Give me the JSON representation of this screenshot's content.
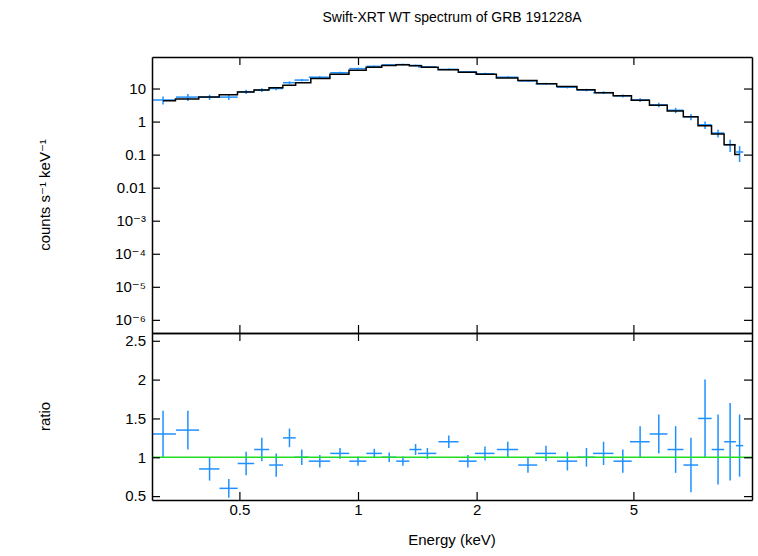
{
  "chart_data": [
    {
      "type": "scatter",
      "title": "Swift-XRT WT spectrum of GRB 191228A",
      "y_label": "counts s⁻¹ keV⁻¹",
      "log": true,
      "tick_labels": "y",
      "xlim": [
        0.3,
        10
      ],
      "ylim": [
        4e-07,
        90
      ],
      "xticks": [
        0.5,
        1,
        2,
        5
      ],
      "yticks": [
        {
          "value": 1e-06,
          "label": "10⁻⁶"
        },
        {
          "value": 1e-05,
          "label": "10⁻⁵"
        },
        {
          "value": 0.0001,
          "label": "10⁻⁴"
        },
        {
          "value": 0.001,
          "label": "10⁻³"
        },
        0.01,
        0.1,
        1,
        10
      ],
      "series": [
        {
          "type": "scatter",
          "color": "#1e90ff",
          "marker": "cross",
          "x": [
            0.32,
            0.37,
            0.42,
            0.47,
            0.52,
            0.57,
            0.62,
            0.67,
            0.72,
            0.8,
            0.9,
            1.0,
            1.1,
            1.2,
            1.3,
            1.4,
            1.5,
            1.7,
            1.9,
            2.1,
            2.4,
            2.7,
            3.0,
            3.4,
            3.8,
            4.2,
            4.7,
            5.2,
            5.8,
            6.4,
            7.0,
            7.6,
            8.2,
            8.8,
            9.3
          ],
          "x_errors": [
            0.025,
            0.025,
            0.025,
            0.025,
            0.025,
            0.025,
            0.025,
            0.025,
            0.03,
            0.05,
            0.05,
            0.05,
            0.05,
            0.05,
            0.05,
            0.05,
            0.08,
            0.1,
            0.1,
            0.12,
            0.15,
            0.15,
            0.18,
            0.2,
            0.2,
            0.25,
            0.25,
            0.3,
            0.3,
            0.3,
            0.3,
            0.3,
            0.3,
            0.3,
            0.2
          ],
          "values": [
            4.5,
            5.5,
            5.5,
            5.5,
            8,
            9,
            10,
            15,
            18,
            22,
            30,
            40,
            47,
            52,
            53,
            50,
            45,
            38,
            32,
            28,
            22,
            17,
            14,
            11,
            9,
            7.5,
            6,
            4.5,
            3.2,
            2.2,
            1.4,
            0.8,
            0.45,
            0.2,
            0.12
          ],
          "errors": [
            1.2,
            1.3,
            1.0,
            1.0,
            1.2,
            1.2,
            1.2,
            1.5,
            1.5,
            1.8,
            2,
            2.5,
            2.5,
            3,
            3,
            3,
            2.5,
            2.2,
            2,
            1.8,
            1.5,
            1.2,
            1,
            0.9,
            0.8,
            0.7,
            0.6,
            0.6,
            0.5,
            0.4,
            0.3,
            0.2,
            0.12,
            0.08,
            0.06
          ]
        },
        {
          "type": "line",
          "color": "#000000",
          "line_style": "steps",
          "x": [
            0.32,
            0.37,
            0.42,
            0.47,
            0.52,
            0.57,
            0.62,
            0.67,
            0.72,
            0.8,
            0.9,
            1.0,
            1.1,
            1.2,
            1.3,
            1.4,
            1.5,
            1.7,
            1.9,
            2.1,
            2.4,
            2.7,
            3.0,
            3.4,
            3.8,
            4.2,
            4.7,
            5.2,
            5.8,
            6.4,
            7.0,
            7.6,
            8.2,
            8.8,
            9.3
          ],
          "values": [
            4.3,
            4.8,
            5.5,
            6.5,
            7.8,
            9,
            10.5,
            12.5,
            15,
            20,
            27,
            36,
            44,
            50,
            52,
            49,
            44,
            37,
            31,
            27,
            21,
            17.5,
            14,
            11.5,
            9.2,
            7.5,
            6.0,
            4.4,
            3.1,
            2.1,
            1.4,
            0.75,
            0.42,
            0.2,
            0.1
          ]
        }
      ]
    },
    {
      "type": "scatter",
      "x_label": "Energy (keV)",
      "y_label": "ratio",
      "log": "x",
      "xlim": [
        0.3,
        10
      ],
      "ylim": [
        0.45,
        2.6
      ],
      "xticks": [
        0.5,
        1,
        2,
        5
      ],
      "yticks": [
        0.5,
        1,
        1.5,
        2,
        2.5
      ],
      "series": [
        {
          "type": "scatter",
          "color": "#1e90ff",
          "marker": "cross",
          "x": [
            0.32,
            0.37,
            0.42,
            0.47,
            0.52,
            0.57,
            0.62,
            0.67,
            0.72,
            0.8,
            0.9,
            1.0,
            1.1,
            1.2,
            1.3,
            1.4,
            1.5,
            1.7,
            1.9,
            2.1,
            2.4,
            2.7,
            3.0,
            3.4,
            3.8,
            4.2,
            4.7,
            5.2,
            5.8,
            6.4,
            7.0,
            7.6,
            8.2,
            8.8,
            9.3
          ],
          "x_errors": [
            0.025,
            0.025,
            0.025,
            0.025,
            0.025,
            0.025,
            0.025,
            0.025,
            0.03,
            0.05,
            0.05,
            0.05,
            0.05,
            0.05,
            0.05,
            0.05,
            0.08,
            0.1,
            0.1,
            0.12,
            0.15,
            0.15,
            0.18,
            0.2,
            0.2,
            0.25,
            0.25,
            0.3,
            0.3,
            0.3,
            0.3,
            0.3,
            0.3,
            0.3,
            0.2
          ],
          "values": [
            1.3,
            1.35,
            0.85,
            0.6,
            0.92,
            1.1,
            0.9,
            1.25,
            1.0,
            0.95,
            1.05,
            0.95,
            1.05,
            1.0,
            0.95,
            1.1,
            1.05,
            1.2,
            0.95,
            1.05,
            1.1,
            0.9,
            1.05,
            0.95,
            1.0,
            1.05,
            0.95,
            1.2,
            1.3,
            1.1,
            0.9,
            1.5,
            1.1,
            1.2,
            1.15
          ],
          "errors": [
            0.3,
            0.25,
            0.15,
            0.12,
            0.15,
            0.15,
            0.15,
            0.12,
            0.1,
            0.08,
            0.07,
            0.06,
            0.06,
            0.06,
            0.06,
            0.07,
            0.07,
            0.08,
            0.08,
            0.09,
            0.1,
            0.1,
            0.1,
            0.12,
            0.12,
            0.15,
            0.15,
            0.2,
            0.25,
            0.3,
            0.35,
            0.5,
            0.45,
            0.5,
            0.4
          ]
        },
        {
          "type": "line",
          "color": "#22dd22",
          "line_style": "solid",
          "x": [
            0.3,
            10
          ],
          "values": [
            1,
            1
          ]
        }
      ]
    }
  ]
}
